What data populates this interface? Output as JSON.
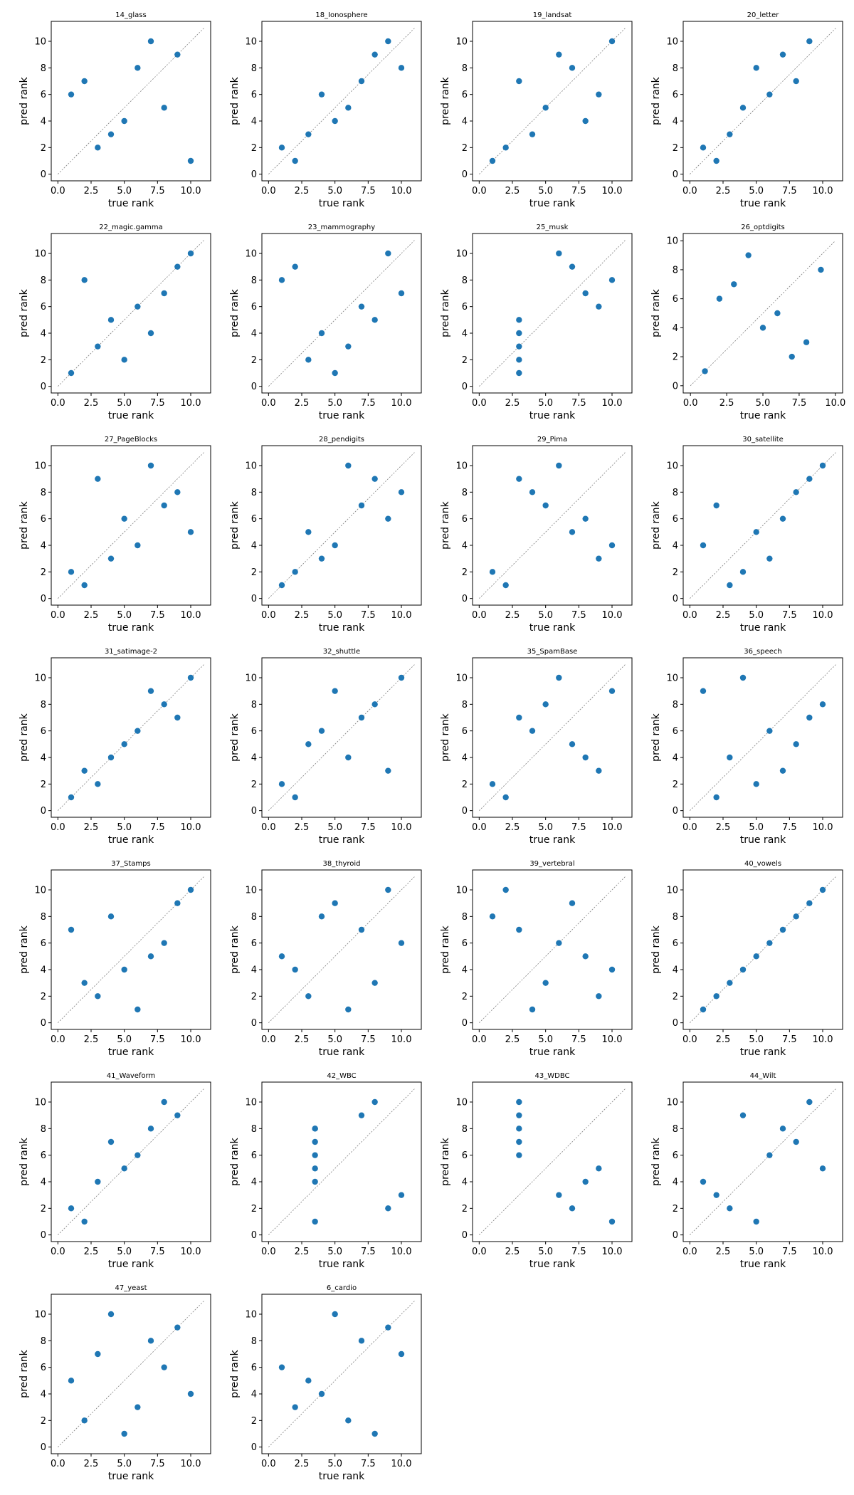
{
  "chart_data": [
    {
      "type": "scatter",
      "title": "14_glass",
      "xlabel": "true rank",
      "ylabel": "pred rank",
      "xlim": [
        -0.5,
        11.5
      ],
      "ylim": [
        -0.5,
        11.5
      ],
      "xticks": [
        "0.0",
        "2.5",
        "5.0",
        "7.5",
        "10.0"
      ],
      "yticks": [
        "0",
        "2",
        "4",
        "6",
        "8",
        "10"
      ],
      "x": [
        1,
        2,
        3,
        4,
        5,
        6,
        7,
        8,
        9,
        10
      ],
      "y": [
        6,
        7,
        2,
        3,
        4,
        8,
        10,
        5,
        9,
        1
      ]
    },
    {
      "type": "scatter",
      "title": "18_Ionosphere",
      "xlabel": "true rank",
      "ylabel": "pred rank",
      "xlim": [
        -0.5,
        11.5
      ],
      "ylim": [
        -0.5,
        11.5
      ],
      "xticks": [
        "0.0",
        "2.5",
        "5.0",
        "7.5",
        "10.0"
      ],
      "yticks": [
        "0",
        "2",
        "4",
        "6",
        "8",
        "10"
      ],
      "x": [
        1,
        2,
        3,
        4,
        5,
        6,
        7,
        8,
        9,
        10
      ],
      "y": [
        2,
        1,
        3,
        6,
        4,
        5,
        7,
        9,
        10,
        8
      ]
    },
    {
      "type": "scatter",
      "title": "19_landsat",
      "xlabel": "true rank",
      "ylabel": "pred rank",
      "xlim": [
        -0.5,
        11.5
      ],
      "ylim": [
        -0.5,
        11.5
      ],
      "xticks": [
        "0.0",
        "2.5",
        "5.0",
        "7.5",
        "10.0"
      ],
      "yticks": [
        "0",
        "2",
        "4",
        "6",
        "8",
        "10"
      ],
      "x": [
        1,
        2,
        3,
        4,
        5,
        6,
        7,
        8,
        9,
        10
      ],
      "y": [
        1,
        2,
        7,
        3,
        5,
        9,
        8,
        4,
        6,
        10
      ]
    },
    {
      "type": "scatter",
      "title": "20_letter",
      "xlabel": "true rank",
      "ylabel": "pred rank",
      "xlim": [
        -0.5,
        11.5
      ],
      "ylim": [
        -0.5,
        11.5
      ],
      "xticks": [
        "0.0",
        "2.5",
        "5.0",
        "7.5",
        "10.0"
      ],
      "yticks": [
        "0",
        "2",
        "4",
        "6",
        "8",
        "10"
      ],
      "x": [
        1,
        2,
        3,
        4,
        5,
        6,
        7,
        8,
        9
      ],
      "y": [
        2,
        1,
        3,
        5,
        8,
        6,
        9,
        7,
        10
      ]
    },
    {
      "type": "scatter",
      "title": "22_magic.gamma",
      "xlabel": "true rank",
      "ylabel": "pred rank",
      "xlim": [
        -0.5,
        11.5
      ],
      "ylim": [
        -0.5,
        11.5
      ],
      "xticks": [
        "0.0",
        "2.5",
        "5.0",
        "7.5",
        "10.0"
      ],
      "yticks": [
        "0",
        "2",
        "4",
        "6",
        "8",
        "10"
      ],
      "x": [
        1,
        2,
        3,
        4,
        5,
        6,
        7,
        8,
        9,
        10
      ],
      "y": [
        1,
        8,
        3,
        5,
        2,
        6,
        4,
        7,
        9,
        10
      ]
    },
    {
      "type": "scatter",
      "title": "23_mammography",
      "xlabel": "true rank",
      "ylabel": "pred rank",
      "xlim": [
        -0.5,
        11.5
      ],
      "ylim": [
        -0.5,
        11.5
      ],
      "xticks": [
        "0.0",
        "2.5",
        "5.0",
        "7.5",
        "10.0"
      ],
      "yticks": [
        "0",
        "2",
        "4",
        "6",
        "8",
        "10"
      ],
      "x": [
        1,
        2,
        3,
        4,
        5,
        6,
        7,
        8,
        9,
        10
      ],
      "y": [
        8,
        9,
        2,
        4,
        1,
        3,
        6,
        5,
        10,
        7
      ]
    },
    {
      "type": "scatter",
      "title": "25_musk",
      "xlabel": "true rank",
      "ylabel": "pred rank",
      "xlim": [
        -0.5,
        11.5
      ],
      "ylim": [
        -0.5,
        11.5
      ],
      "xticks": [
        "0.0",
        "2.5",
        "5.0",
        "7.5",
        "10.0"
      ],
      "yticks": [
        "0",
        "2",
        "4",
        "6",
        "8",
        "10"
      ],
      "x": [
        3,
        3,
        3,
        3,
        3,
        6,
        7,
        8,
        9,
        10
      ],
      "y": [
        1,
        2,
        3,
        4,
        5,
        10,
        9,
        7,
        6,
        8
      ]
    },
    {
      "type": "scatter",
      "title": "26_optdigits",
      "xlabel": "true rank",
      "ylabel": "pred rank",
      "xlim": [
        -0.5,
        10.5
      ],
      "ylim": [
        -0.5,
        10.5
      ],
      "xticks": [
        "0.0",
        "2.5",
        "5.0",
        "7.5",
        "10.0"
      ],
      "yticks": [
        "0",
        "2",
        "4",
        "6",
        "8",
        "10"
      ],
      "x": [
        1,
        2,
        3,
        4,
        5,
        6,
        7,
        8,
        9
      ],
      "y": [
        1,
        6,
        7,
        9,
        4,
        5,
        2,
        3,
        8
      ]
    },
    {
      "type": "scatter",
      "title": "27_PageBlocks",
      "xlabel": "true rank",
      "ylabel": "pred rank",
      "xlim": [
        -0.5,
        11.5
      ],
      "ylim": [
        -0.5,
        11.5
      ],
      "xticks": [
        "0.0",
        "2.5",
        "5.0",
        "7.5",
        "10.0"
      ],
      "yticks": [
        "0",
        "2",
        "4",
        "6",
        "8",
        "10"
      ],
      "x": [
        1,
        2,
        3,
        4,
        5,
        6,
        7,
        8,
        9,
        10
      ],
      "y": [
        2,
        1,
        9,
        3,
        6,
        4,
        10,
        7,
        8,
        5
      ]
    },
    {
      "type": "scatter",
      "title": "28_pendigits",
      "xlabel": "true rank",
      "ylabel": "pred rank",
      "xlim": [
        -0.5,
        11.5
      ],
      "ylim": [
        -0.5,
        11.5
      ],
      "xticks": [
        "0.0",
        "2.5",
        "5.0",
        "7.5",
        "10.0"
      ],
      "yticks": [
        "0",
        "2",
        "4",
        "6",
        "8",
        "10"
      ],
      "x": [
        1,
        2,
        3,
        4,
        5,
        6,
        7,
        8,
        9,
        10
      ],
      "y": [
        1,
        2,
        5,
        3,
        4,
        10,
        7,
        9,
        6,
        8
      ]
    },
    {
      "type": "scatter",
      "title": "29_Pima",
      "xlabel": "true rank",
      "ylabel": "pred rank",
      "xlim": [
        -0.5,
        11.5
      ],
      "ylim": [
        -0.5,
        11.5
      ],
      "xticks": [
        "0.0",
        "2.5",
        "5.0",
        "7.5",
        "10.0"
      ],
      "yticks": [
        "0",
        "2",
        "4",
        "6",
        "8",
        "10"
      ],
      "x": [
        1,
        2,
        3,
        4,
        5,
        6,
        7,
        8,
        9,
        10
      ],
      "y": [
        2,
        1,
        9,
        8,
        7,
        10,
        5,
        6,
        3,
        4
      ]
    },
    {
      "type": "scatter",
      "title": "30_satellite",
      "xlabel": "true rank",
      "ylabel": "pred rank",
      "xlim": [
        -0.5,
        11.5
      ],
      "ylim": [
        -0.5,
        11.5
      ],
      "xticks": [
        "0.0",
        "2.5",
        "5.0",
        "7.5",
        "10.0"
      ],
      "yticks": [
        "0",
        "2",
        "4",
        "6",
        "8",
        "10"
      ],
      "x": [
        1,
        2,
        3,
        4,
        5,
        6,
        7,
        8,
        9,
        10
      ],
      "y": [
        4,
        7,
        1,
        2,
        5,
        3,
        6,
        8,
        9,
        10
      ]
    },
    {
      "type": "scatter",
      "title": "31_satimage-2",
      "xlabel": "true rank",
      "ylabel": "pred rank",
      "xlim": [
        -0.5,
        11.5
      ],
      "ylim": [
        -0.5,
        11.5
      ],
      "xticks": [
        "0.0",
        "2.5",
        "5.0",
        "7.5",
        "10.0"
      ],
      "yticks": [
        "0",
        "2",
        "4",
        "6",
        "8",
        "10"
      ],
      "x": [
        1,
        2,
        3,
        4,
        5,
        6,
        7,
        8,
        9,
        10
      ],
      "y": [
        1,
        3,
        2,
        4,
        5,
        6,
        9,
        8,
        7,
        10
      ]
    },
    {
      "type": "scatter",
      "title": "32_shuttle",
      "xlabel": "true rank",
      "ylabel": "pred rank",
      "xlim": [
        -0.5,
        11.5
      ],
      "ylim": [
        -0.5,
        11.5
      ],
      "xticks": [
        "0.0",
        "2.5",
        "5.0",
        "7.5",
        "10.0"
      ],
      "yticks": [
        "0",
        "2",
        "4",
        "6",
        "8",
        "10"
      ],
      "x": [
        1,
        2,
        3,
        4,
        5,
        6,
        7,
        8,
        9,
        10
      ],
      "y": [
        2,
        1,
        5,
        6,
        9,
        4,
        7,
        8,
        3,
        10
      ]
    },
    {
      "type": "scatter",
      "title": "35_SpamBase",
      "xlabel": "true rank",
      "ylabel": "pred rank",
      "xlim": [
        -0.5,
        11.5
      ],
      "ylim": [
        -0.5,
        11.5
      ],
      "xticks": [
        "0.0",
        "2.5",
        "5.0",
        "7.5",
        "10.0"
      ],
      "yticks": [
        "0",
        "2",
        "4",
        "6",
        "8",
        "10"
      ],
      "x": [
        1,
        2,
        3,
        4,
        5,
        6,
        7,
        8,
        9,
        10
      ],
      "y": [
        2,
        1,
        7,
        6,
        8,
        10,
        5,
        4,
        3,
        9
      ]
    },
    {
      "type": "scatter",
      "title": "36_speech",
      "xlabel": "true rank",
      "ylabel": "pred rank",
      "xlim": [
        -0.5,
        11.5
      ],
      "ylim": [
        -0.5,
        11.5
      ],
      "xticks": [
        "0.0",
        "2.5",
        "5.0",
        "7.5",
        "10.0"
      ],
      "yticks": [
        "0",
        "2",
        "4",
        "6",
        "8",
        "10"
      ],
      "x": [
        1,
        2,
        3,
        4,
        5,
        6,
        7,
        8,
        9,
        10
      ],
      "y": [
        9,
        1,
        4,
        10,
        2,
        6,
        3,
        5,
        7,
        8
      ]
    },
    {
      "type": "scatter",
      "title": "37_Stamps",
      "xlabel": "true rank",
      "ylabel": "pred rank",
      "xlim": [
        -0.5,
        11.5
      ],
      "ylim": [
        -0.5,
        11.5
      ],
      "xticks": [
        "0.0",
        "2.5",
        "5.0",
        "7.5",
        "10.0"
      ],
      "yticks": [
        "0",
        "2",
        "4",
        "6",
        "8",
        "10"
      ],
      "x": [
        1,
        2,
        3,
        4,
        5,
        6,
        7,
        8,
        9,
        10
      ],
      "y": [
        7,
        3,
        2,
        8,
        4,
        1,
        5,
        6,
        9,
        10
      ]
    },
    {
      "type": "scatter",
      "title": "38_thyroid",
      "xlabel": "true rank",
      "ylabel": "pred rank",
      "xlim": [
        -0.5,
        11.5
      ],
      "ylim": [
        -0.5,
        11.5
      ],
      "xticks": [
        "0.0",
        "2.5",
        "5.0",
        "7.5",
        "10.0"
      ],
      "yticks": [
        "0",
        "2",
        "4",
        "6",
        "8",
        "10"
      ],
      "x": [
        1,
        2,
        3,
        4,
        5,
        6,
        7,
        8,
        9,
        10
      ],
      "y": [
        5,
        4,
        2,
        8,
        9,
        1,
        7,
        3,
        10,
        6
      ]
    },
    {
      "type": "scatter",
      "title": "39_vertebral",
      "xlabel": "true rank",
      "ylabel": "pred rank",
      "xlim": [
        -0.5,
        11.5
      ],
      "ylim": [
        -0.5,
        11.5
      ],
      "xticks": [
        "0.0",
        "2.5",
        "5.0",
        "7.5",
        "10.0"
      ],
      "yticks": [
        "0",
        "2",
        "4",
        "6",
        "8",
        "10"
      ],
      "x": [
        1,
        2,
        3,
        4,
        5,
        6,
        7,
        8,
        9,
        10
      ],
      "y": [
        8,
        10,
        7,
        1,
        3,
        6,
        9,
        5,
        2,
        4
      ]
    },
    {
      "type": "scatter",
      "title": "40_vowels",
      "xlabel": "true rank",
      "ylabel": "pred rank",
      "xlim": [
        -0.5,
        11.5
      ],
      "ylim": [
        -0.5,
        11.5
      ],
      "xticks": [
        "0.0",
        "2.5",
        "5.0",
        "7.5",
        "10.0"
      ],
      "yticks": [
        "0",
        "2",
        "4",
        "6",
        "8",
        "10"
      ],
      "x": [
        1,
        2,
        3,
        4,
        5,
        6,
        7,
        8,
        9,
        10
      ],
      "y": [
        1,
        2,
        3,
        4,
        5,
        6,
        7,
        8,
        9,
        10
      ]
    },
    {
      "type": "scatter",
      "title": "41_Waveform",
      "xlabel": "true rank",
      "ylabel": "pred rank",
      "xlim": [
        -0.5,
        11.5
      ],
      "ylim": [
        -0.5,
        11.5
      ],
      "xticks": [
        "0.0",
        "2.5",
        "5.0",
        "7.5",
        "10.0"
      ],
      "yticks": [
        "0",
        "2",
        "4",
        "6",
        "8",
        "10"
      ],
      "x": [
        1,
        2,
        3,
        4,
        5,
        6,
        7,
        8,
        9
      ],
      "y": [
        2,
        1,
        4,
        7,
        5,
        6,
        8,
        10,
        9
      ]
    },
    {
      "type": "scatter",
      "title": "42_WBC",
      "xlabel": "true rank",
      "ylabel": "pred rank",
      "xlim": [
        -0.5,
        11.5
      ],
      "ylim": [
        -0.5,
        11.5
      ],
      "xticks": [
        "0.0",
        "2.5",
        "5.0",
        "7.5",
        "10.0"
      ],
      "yticks": [
        "0",
        "2",
        "4",
        "6",
        "8",
        "10"
      ],
      "x": [
        3.5,
        3.5,
        3.5,
        3.5,
        3.5,
        3.5,
        3.5,
        7,
        8,
        9,
        10
      ],
      "y": [
        1,
        4,
        5,
        6,
        7,
        8,
        8,
        9,
        10,
        2,
        3
      ]
    },
    {
      "type": "scatter",
      "title": "43_WDBC",
      "xlabel": "true rank",
      "ylabel": "pred rank",
      "xlim": [
        -0.5,
        11.5
      ],
      "ylim": [
        -0.5,
        11.5
      ],
      "xticks": [
        "0.0",
        "2.5",
        "5.0",
        "7.5",
        "10.0"
      ],
      "yticks": [
        "0",
        "2",
        "4",
        "6",
        "8",
        "10"
      ],
      "x": [
        3,
        3,
        3,
        3,
        3,
        6,
        7,
        8,
        9,
        10
      ],
      "y": [
        6,
        7,
        8,
        9,
        10,
        3,
        2,
        4,
        5,
        1
      ]
    },
    {
      "type": "scatter",
      "title": "44_Wilt",
      "xlabel": "true rank",
      "ylabel": "pred rank",
      "xlim": [
        -0.5,
        11.5
      ],
      "ylim": [
        -0.5,
        11.5
      ],
      "xticks": [
        "0.0",
        "2.5",
        "5.0",
        "7.5",
        "10.0"
      ],
      "yticks": [
        "0",
        "2",
        "4",
        "6",
        "8",
        "10"
      ],
      "x": [
        1,
        2,
        3,
        4,
        5,
        6,
        7,
        8,
        9,
        10
      ],
      "y": [
        4,
        3,
        2,
        9,
        1,
        6,
        8,
        7,
        10,
        5
      ]
    },
    {
      "type": "scatter",
      "title": "47_yeast",
      "xlabel": "true rank",
      "ylabel": "pred rank",
      "xlim": [
        -0.5,
        11.5
      ],
      "ylim": [
        -0.5,
        11.5
      ],
      "xticks": [
        "0.0",
        "2.5",
        "5.0",
        "7.5",
        "10.0"
      ],
      "yticks": [
        "0",
        "2",
        "4",
        "6",
        "8",
        "10"
      ],
      "x": [
        1,
        2,
        3,
        4,
        5,
        6,
        7,
        8,
        9,
        10
      ],
      "y": [
        5,
        2,
        7,
        10,
        1,
        3,
        8,
        6,
        9,
        4
      ]
    },
    {
      "type": "scatter",
      "title": "6_cardio",
      "xlabel": "true rank",
      "ylabel": "pred rank",
      "xlim": [
        -0.5,
        11.5
      ],
      "ylim": [
        -0.5,
        11.5
      ],
      "xticks": [
        "0.0",
        "2.5",
        "5.0",
        "7.5",
        "10.0"
      ],
      "yticks": [
        "0",
        "2",
        "4",
        "6",
        "8",
        "10"
      ],
      "x": [
        1,
        2,
        3,
        4,
        5,
        6,
        7,
        8,
        9,
        10
      ],
      "y": [
        6,
        3,
        5,
        4,
        10,
        2,
        8,
        1,
        9,
        7
      ]
    }
  ],
  "colors": {
    "points": "#1f77b4",
    "diagonal": "#808080"
  }
}
